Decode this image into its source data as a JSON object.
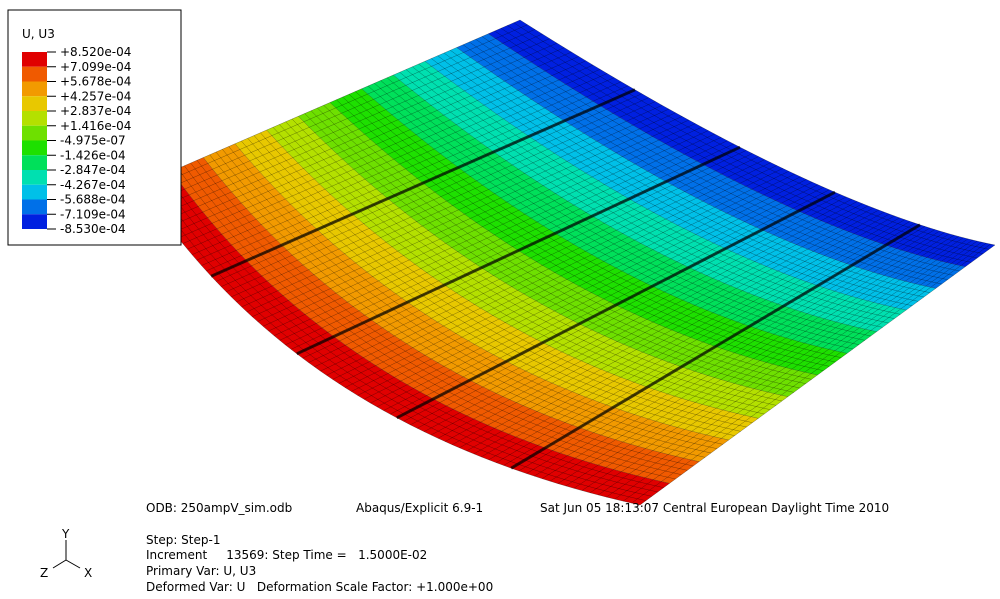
{
  "legend": {
    "title": "U, U3",
    "labels": [
      "+8.520e-04",
      "+7.099e-04",
      "+5.678e-04",
      "+4.257e-04",
      "+2.837e-04",
      "+1.416e-04",
      "-4.975e-07",
      "-1.426e-04",
      "-2.847e-04",
      "-4.267e-04",
      "-5.688e-04",
      "-7.109e-04",
      "-8.530e-04"
    ],
    "colors": [
      "#e00000",
      "#f05a00",
      "#f29a00",
      "#e8c800",
      "#b4e000",
      "#6ee000",
      "#1ee000",
      "#00e05a",
      "#00e0b0",
      "#00c0e8",
      "#0070e8",
      "#0020e0"
    ]
  },
  "info": {
    "odb": "ODB: 250ampV_sim.odb",
    "solver": "Abaqus/Explicit 6.9-1",
    "date": "Sat Jun 05 18:13:07 Central European Daylight Time 2010",
    "step": "Step: Step-1",
    "increment": "Increment     13569: Step Time =   1.5000E-02",
    "primary": "Primary Var: U, U3",
    "deformed": "Deformed Var: U   Deformation Scale Factor: +1.000e+00"
  },
  "triad": {
    "x": "X",
    "y": "Y",
    "z": "Z"
  }
}
